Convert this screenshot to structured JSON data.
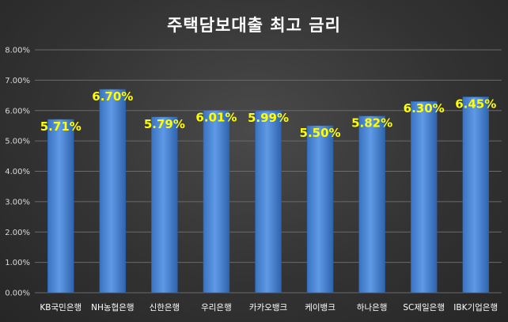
{
  "chart_data": {
    "type": "bar",
    "title": "주택담보대출 최고 금리",
    "categories": [
      "KB국민은행",
      "NH농협은행",
      "신한은행",
      "우리은행",
      "카카오뱅크",
      "케이뱅크",
      "하나은행",
      "SC제일은행",
      "IBK기업은행"
    ],
    "values": [
      5.71,
      6.7,
      5.79,
      6.01,
      5.99,
      5.5,
      5.82,
      6.3,
      6.45
    ],
    "data_labels": [
      "5.71%",
      "6.70%",
      "5.79%",
      "6.01%",
      "5.99%",
      "5.50%",
      "5.82%",
      "6.30%",
      "6.45%"
    ],
    "yticks": [
      "0.00%",
      "1.00%",
      "2.00%",
      "3.00%",
      "4.00%",
      "5.00%",
      "6.00%",
      "7.00%",
      "8.00%"
    ],
    "ylim": [
      0,
      8
    ],
    "grid": true,
    "xlabel": "",
    "ylabel": "",
    "colors": {
      "bar": "#4a86d4",
      "label": "#ffff00",
      "grid": "#6a6a6a"
    }
  }
}
